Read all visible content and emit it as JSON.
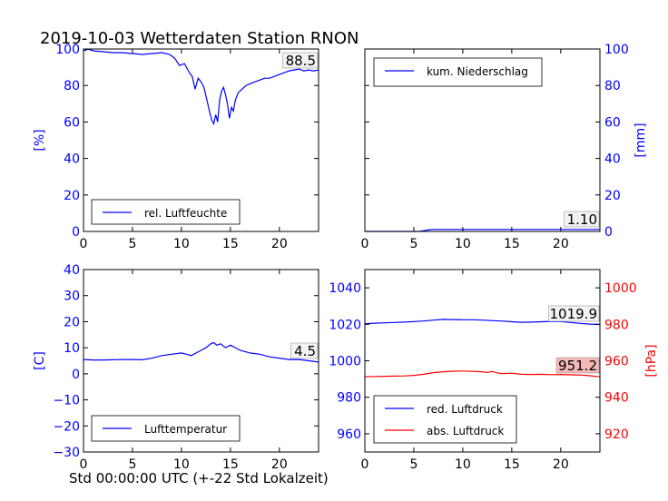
{
  "title": "2019-10-03 Wetterdaten Station RNON",
  "footer_label": "Std 00:00:00 UTC (+-22 Std Lokalzeit)",
  "colors": {
    "blue": "#0000ff",
    "red": "#ff0000",
    "axis": "#000000",
    "value_box_bg": "#f2f2f2",
    "red_box_bg": "#f4b8b8"
  },
  "chart_data": [
    {
      "id": "humidity",
      "type": "line",
      "ylabel": "[%]",
      "xlim": [
        0,
        24
      ],
      "ylim": [
        0,
        100
      ],
      "xticks": [
        0,
        5,
        10,
        15,
        20
      ],
      "yticks": [
        0,
        20,
        40,
        60,
        80,
        100
      ],
      "ytick_side": "left",
      "ytick_color": "#0000ff",
      "legend_position": "lower-left",
      "current_value_label": "88.5",
      "series": [
        {
          "name": "rel. Luftfeuchte",
          "color": "#0000ff",
          "x": [
            0,
            0.5,
            1,
            2,
            3,
            4,
            5,
            6,
            7,
            8,
            8.8,
            9.3,
            9.8,
            10.3,
            10.8,
            11.1,
            11.4,
            11.7,
            12,
            12.3,
            12.6,
            12.9,
            13.1,
            13.3,
            13.5,
            13.7,
            13.9,
            14.1,
            14.3,
            14.5,
            14.7,
            14.9,
            15.1,
            15.3,
            15.5,
            15.8,
            16.2,
            16.6,
            17,
            17.5,
            18,
            18.5,
            19,
            19.5,
            20,
            20.5,
            21,
            21.5,
            22,
            22.5,
            23,
            23.5,
            24
          ],
          "y": [
            99,
            100,
            99,
            98.5,
            98,
            98,
            97.5,
            97,
            97.5,
            98,
            97,
            95,
            91,
            92,
            87,
            85,
            78,
            84,
            82,
            79,
            72,
            65,
            61,
            59,
            64,
            60,
            72,
            77,
            79,
            75,
            70,
            62,
            68,
            66,
            72,
            76,
            78,
            80,
            81,
            82,
            83,
            84,
            84,
            85,
            86,
            87,
            88,
            88.5,
            89,
            88,
            88.5,
            88,
            88.5
          ]
        }
      ]
    },
    {
      "id": "precipitation",
      "type": "line",
      "ylabel": "[mm]",
      "xlim": [
        0,
        24
      ],
      "ylim": [
        0,
        100
      ],
      "xticks": [
        0,
        5,
        10,
        15,
        20
      ],
      "yticks": [
        0,
        20,
        40,
        60,
        80,
        100
      ],
      "ytick_side": "right",
      "ytick_color": "#0000ff",
      "legend_position": "upper-left",
      "current_value_label": "1.10",
      "series": [
        {
          "name": "kum. Niederschlag",
          "color": "#0000ff",
          "x": [
            0,
            5.5,
            6,
            6.5,
            7,
            10,
            15,
            20,
            24
          ],
          "y": [
            0,
            0,
            0.4,
            0.8,
            1.1,
            1.1,
            1.1,
            1.1,
            1.1
          ]
        }
      ]
    },
    {
      "id": "temperature",
      "type": "line",
      "ylabel": "[C]",
      "xlim": [
        0,
        24
      ],
      "ylim": [
        -30,
        40
      ],
      "xticks": [
        0,
        5,
        10,
        15,
        20
      ],
      "yticks": [
        -30,
        -20,
        -10,
        0,
        10,
        20,
        30,
        40
      ],
      "ytick_side": "left",
      "ytick_color": "#0000ff",
      "legend_position": "lower-left",
      "current_value_label": "4.5",
      "series": [
        {
          "name": "Lufttemperatur",
          "color": "#0000ff",
          "x": [
            0,
            1,
            2,
            3,
            4,
            5,
            6,
            7,
            8,
            9,
            10,
            10.5,
            11,
            11.5,
            12,
            12.5,
            13,
            13.3,
            13.6,
            14,
            14.5,
            15,
            15.5,
            16,
            17,
            18,
            19,
            20,
            21,
            22,
            23,
            24
          ],
          "y": [
            5.5,
            5.3,
            5.3,
            5.4,
            5.5,
            5.5,
            5.4,
            6,
            7,
            7.5,
            8,
            7.5,
            7,
            8,
            9,
            10,
            11.5,
            12,
            11,
            11.5,
            10,
            11,
            10,
            9,
            8,
            7.5,
            6.5,
            6,
            5.5,
            5.5,
            5,
            4.5
          ]
        }
      ]
    },
    {
      "id": "pressure",
      "type": "line",
      "ylabel": "[hPa]",
      "xlim": [
        0,
        24
      ],
      "ylim": [
        950,
        1050
      ],
      "ylim_right": [
        910,
        1010
      ],
      "xticks": [
        0,
        5,
        10,
        15,
        20
      ],
      "yticks": [
        960,
        980,
        1000,
        1020,
        1040
      ],
      "yticks_right": [
        920,
        940,
        960,
        980,
        1000
      ],
      "ytick_color": "#0000ff",
      "ytick_right_color": "#ff0000",
      "legend_position": "lower-left",
      "current_value_label": "1019.9",
      "current_value_label_right": "951.2",
      "series": [
        {
          "name": "red. Luftdruck",
          "color": "#0000ff",
          "axis": "left",
          "x": [
            0,
            1,
            2,
            3,
            4,
            5,
            6,
            7,
            8,
            9,
            10,
            11,
            12,
            13,
            14,
            15,
            16,
            17,
            18,
            19,
            20,
            21,
            22,
            23,
            24
          ],
          "y": [
            1020.3,
            1020.6,
            1020.8,
            1021,
            1021.2,
            1021.5,
            1021.8,
            1022.3,
            1022.7,
            1022.6,
            1022.5,
            1022.5,
            1022.3,
            1022,
            1021.8,
            1021.4,
            1021.1,
            1021.2,
            1021.4,
            1021.6,
            1021.5,
            1021,
            1020.5,
            1020.1,
            1019.9
          ]
        },
        {
          "name": "abs. Luftdruck",
          "color": "#ff0000",
          "axis": "right",
          "x": [
            0,
            1,
            2,
            3,
            4,
            5,
            6,
            7,
            8,
            9,
            10,
            11,
            12,
            12.5,
            13,
            13.5,
            14,
            15,
            16,
            17,
            18,
            19,
            20,
            21,
            22,
            23,
            24
          ],
          "y": [
            951.2,
            951.4,
            951.5,
            951.6,
            951.7,
            952,
            952.6,
            953.5,
            954,
            954.3,
            954.4,
            954.2,
            954,
            953.6,
            954.2,
            953.4,
            953,
            953.2,
            952.6,
            952.5,
            952.6,
            952.4,
            952.5,
            952.3,
            952.2,
            951.8,
            951.2
          ]
        }
      ]
    }
  ]
}
